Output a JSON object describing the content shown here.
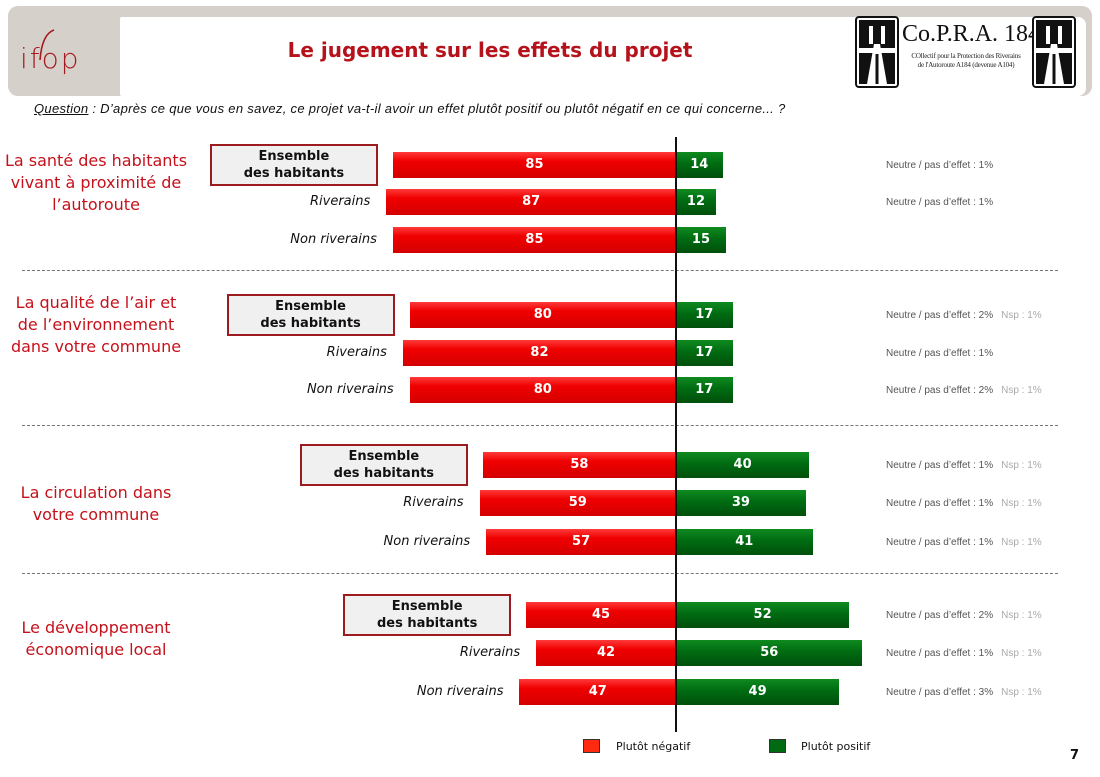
{
  "header": {
    "brand": "ifop",
    "title": "Le jugement sur les effets du projet",
    "partner_logo": {
      "title": "Co.P.R.A. 184",
      "subtitle_line1": "COllectif pour la Protection des Riverains",
      "subtitle_line2": "de l'Autoroute A184 (devenue A104)",
      "icon": "motorway-sign-icon"
    }
  },
  "question": {
    "label": "Question",
    "text": " : D’après ce que vous en savez, ce projet va-t-il avoir un effet plutôt positif ou plutôt négatif en ce qui concerne... ?"
  },
  "colors": {
    "negative": "#e00000",
    "positive": "#006b12",
    "category_text": "#c5111b",
    "title": "#b5121b"
  },
  "chart_data": {
    "type": "bar",
    "orientation": "horizontal-diverging",
    "title": "Le jugement sur les effets du projet",
    "unit": "%",
    "legend": [
      {
        "name": "Plutôt négatif",
        "color": "#e00000"
      },
      {
        "name": "Plutôt positif",
        "color": "#006b12"
      }
    ],
    "legend_position": "bottom-center",
    "series_names": [
      "Plutôt négatif",
      "Plutôt positif"
    ],
    "neutral_prefix": "Neutre / pas d’effet : ",
    "nsp_prefix": "Nsp : ",
    "categories": [
      {
        "label": "La santé des habitants vivant à proximité de l’autoroute",
        "rows": [
          {
            "group": "Ensemble des habitants",
            "negatif": 85,
            "positif": 14,
            "neutre": "1%",
            "nsp": null
          },
          {
            "group": "Riverains",
            "negatif": 87,
            "positif": 12,
            "neutre": "1%",
            "nsp": null
          },
          {
            "group": "Non riverains",
            "negatif": 85,
            "positif": 15,
            "neutre": null,
            "nsp": null
          }
        ]
      },
      {
        "label": "La qualité de l’air et de l’environnement dans votre commune",
        "rows": [
          {
            "group": "Ensemble des habitants",
            "negatif": 80,
            "positif": 17,
            "neutre": "2%",
            "nsp": "1%"
          },
          {
            "group": "Riverains",
            "negatif": 82,
            "positif": 17,
            "neutre": "1%",
            "nsp": null
          },
          {
            "group": "Non riverains",
            "negatif": 80,
            "positif": 17,
            "neutre": "2%",
            "nsp": "1%"
          }
        ]
      },
      {
        "label": "La circulation dans votre commune",
        "rows": [
          {
            "group": "Ensemble des habitants",
            "negatif": 58,
            "positif": 40,
            "neutre": "1%",
            "nsp": "1%"
          },
          {
            "group": "Riverains",
            "negatif": 59,
            "positif": 39,
            "neutre": "1%",
            "nsp": "1%"
          },
          {
            "group": "Non riverains",
            "negatif": 57,
            "positif": 41,
            "neutre": "1%",
            "nsp": "1%"
          }
        ]
      },
      {
        "label": "Le développement économique local",
        "rows": [
          {
            "group": "Ensemble des habitants",
            "negatif": 45,
            "positif": 52,
            "neutre": "2%",
            "nsp": "1%"
          },
          {
            "group": "Riverains",
            "negatif": 42,
            "positif": 56,
            "neutre": "1%",
            "nsp": "1%"
          },
          {
            "group": "Non riverains",
            "negatif": 47,
            "positif": 49,
            "neutre": "3%",
            "nsp": "1%"
          }
        ]
      }
    ]
  },
  "footer": {
    "page_number": "7"
  }
}
